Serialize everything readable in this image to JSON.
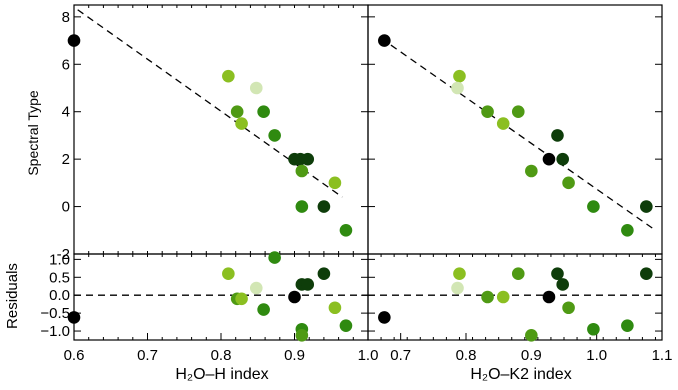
{
  "chart_data": [
    {
      "type": "scatter",
      "panel": "top-left",
      "xlabel": "",
      "ylabel": "Spectral Type",
      "xlim": [
        0.6,
        1.0
      ],
      "ylim": [
        -2,
        8.5
      ],
      "xticks": [
        0.6,
        0.7,
        0.8,
        0.9,
        1.0
      ],
      "yticks": [
        -2,
        0,
        2,
        4,
        6,
        8
      ],
      "fit_line": {
        "x": [
          0.605,
          0.965
        ],
        "y": [
          8.3,
          0.4
        ]
      },
      "points": [
        {
          "x": 0.6,
          "y": 7.0,
          "color": "#000000"
        },
        {
          "x": 0.81,
          "y": 5.5,
          "color": "#8bbf21"
        },
        {
          "x": 0.848,
          "y": 5.0,
          "color": "#d2e6b4"
        },
        {
          "x": 0.822,
          "y": 4.0,
          "color": "#4f9a14"
        },
        {
          "x": 0.858,
          "y": 4.0,
          "color": "#2f8a10"
        },
        {
          "x": 0.828,
          "y": 3.5,
          "color": "#8bbf21"
        },
        {
          "x": 0.873,
          "y": 3.0,
          "color": "#2f8a10"
        },
        {
          "x": 0.9,
          "y": 2.0,
          "color": "#0e3d0a"
        },
        {
          "x": 0.908,
          "y": 2.0,
          "color": "#0e3d0a"
        },
        {
          "x": 0.918,
          "y": 2.0,
          "color": "#0e3d0a"
        },
        {
          "x": 0.91,
          "y": 1.5,
          "color": "#4f9a14"
        },
        {
          "x": 0.955,
          "y": 1.0,
          "color": "#8bbf21"
        },
        {
          "x": 0.91,
          "y": 0.0,
          "color": "#2f8a10"
        },
        {
          "x": 0.94,
          "y": 0.0,
          "color": "#0e3d0a"
        },
        {
          "x": 0.97,
          "y": -1.0,
          "color": "#2f8a10"
        }
      ]
    },
    {
      "type": "scatter",
      "panel": "top-right",
      "xlabel": "",
      "ylabel": "",
      "xlim": [
        0.65,
        1.1
      ],
      "ylim": [
        -2,
        8.5
      ],
      "fit_line": {
        "x": [
          0.67,
          1.09
        ],
        "y": [
          7.1,
          -1.0
        ]
      },
      "points": [
        {
          "x": 0.675,
          "y": 7.0,
          "color": "#000000"
        },
        {
          "x": 0.79,
          "y": 5.5,
          "color": "#8bbf21"
        },
        {
          "x": 0.787,
          "y": 5.0,
          "color": "#d2e6b4"
        },
        {
          "x": 0.833,
          "y": 4.0,
          "color": "#4f9a14"
        },
        {
          "x": 0.88,
          "y": 4.0,
          "color": "#4f9a14"
        },
        {
          "x": 0.857,
          "y": 3.5,
          "color": "#8bbf21"
        },
        {
          "x": 0.94,
          "y": 3.0,
          "color": "#0e3d0a"
        },
        {
          "x": 0.927,
          "y": 2.0,
          "color": "#000000"
        },
        {
          "x": 0.948,
          "y": 2.0,
          "color": "#0e3d0a"
        },
        {
          "x": 0.9,
          "y": 1.5,
          "color": "#4f9a14"
        },
        {
          "x": 0.957,
          "y": 1.0,
          "color": "#4f9a14"
        },
        {
          "x": 0.995,
          "y": 0.0,
          "color": "#2f8a10"
        },
        {
          "x": 1.076,
          "y": 0.0,
          "color": "#0e3d0a"
        },
        {
          "x": 1.047,
          "y": -1.0,
          "color": "#2f8a10"
        }
      ]
    },
    {
      "type": "scatter",
      "panel": "bottom-left",
      "xlabel": "H₂O–H index",
      "ylabel": "Residuals",
      "xlim": [
        0.6,
        1.0
      ],
      "ylim": [
        -1.25,
        1.15
      ],
      "xticks": [
        0.6,
        0.7,
        0.8,
        0.9,
        1.0
      ],
      "ytick_labels": [
        "1.0",
        "0.5",
        "0.0",
        "−0.5",
        "−1.0"
      ],
      "yticks": [
        1.0,
        0.5,
        0.0,
        -0.5,
        -1.0
      ],
      "zero_line": true,
      "points": [
        {
          "x": 0.6,
          "y": -0.62,
          "color": "#000000"
        },
        {
          "x": 0.81,
          "y": 0.6,
          "color": "#8bbf21"
        },
        {
          "x": 0.848,
          "y": 0.2,
          "color": "#d2e6b4"
        },
        {
          "x": 0.822,
          "y": -0.1,
          "color": "#4f9a14"
        },
        {
          "x": 0.828,
          "y": -0.1,
          "color": "#8bbf21"
        },
        {
          "x": 0.873,
          "y": 1.05,
          "color": "#2f8a10"
        },
        {
          "x": 0.858,
          "y": -0.4,
          "color": "#2f8a10"
        },
        {
          "x": 0.91,
          "y": 0.3,
          "color": "#0e3d0a"
        },
        {
          "x": 0.918,
          "y": 0.3,
          "color": "#0e3d0a"
        },
        {
          "x": 0.9,
          "y": -0.05,
          "color": "#000000"
        },
        {
          "x": 0.94,
          "y": 0.6,
          "color": "#0e3d0a"
        },
        {
          "x": 0.955,
          "y": -0.35,
          "color": "#8bbf21"
        },
        {
          "x": 0.91,
          "y": -0.95,
          "color": "#2f8a10"
        },
        {
          "x": 0.91,
          "y": -1.12,
          "color": "#4f9a14"
        },
        {
          "x": 0.97,
          "y": -0.85,
          "color": "#2f8a10"
        }
      ]
    },
    {
      "type": "scatter",
      "panel": "bottom-right",
      "xlabel": "H₂O–K2 index",
      "ylabel": "",
      "xlim": [
        0.65,
        1.1
      ],
      "ylim": [
        -1.25,
        1.15
      ],
      "xticks": [
        0.7,
        0.8,
        0.9,
        1.0,
        1.1
      ],
      "zero_line": true,
      "points": [
        {
          "x": 0.675,
          "y": -0.62,
          "color": "#000000"
        },
        {
          "x": 0.79,
          "y": 0.6,
          "color": "#8bbf21"
        },
        {
          "x": 0.787,
          "y": 0.2,
          "color": "#d2e6b4"
        },
        {
          "x": 0.833,
          "y": -0.05,
          "color": "#4f9a14"
        },
        {
          "x": 0.857,
          "y": -0.05,
          "color": "#8bbf21"
        },
        {
          "x": 0.88,
          "y": 0.6,
          "color": "#4f9a14"
        },
        {
          "x": 0.94,
          "y": 0.6,
          "color": "#0e3d0a"
        },
        {
          "x": 0.948,
          "y": 0.3,
          "color": "#0e3d0a"
        },
        {
          "x": 0.927,
          "y": -0.05,
          "color": "#000000"
        },
        {
          "x": 0.957,
          "y": -0.35,
          "color": "#4f9a14"
        },
        {
          "x": 0.9,
          "y": -1.12,
          "color": "#4f9a14"
        },
        {
          "x": 0.995,
          "y": -0.95,
          "color": "#2f8a10"
        },
        {
          "x": 1.047,
          "y": -0.85,
          "color": "#2f8a10"
        },
        {
          "x": 1.076,
          "y": 0.6,
          "color": "#0e3d0a"
        }
      ]
    }
  ]
}
